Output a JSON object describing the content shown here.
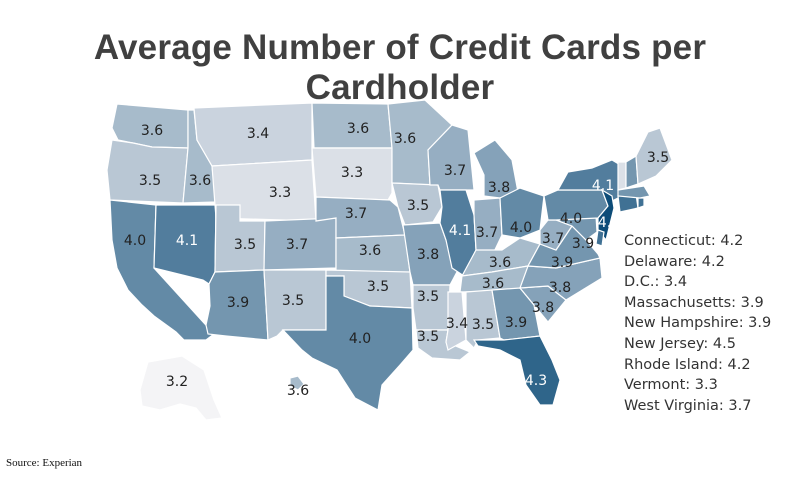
{
  "title": "Average Number of Credit Cards per Cardholder",
  "source": "Source: Experian",
  "chart_data": {
    "type": "choropleth",
    "color_scale": {
      "low": "#ececf0",
      "high": "#0d4c78",
      "min": 3.2,
      "max": 4.5
    },
    "states": [
      {
        "id": "WA",
        "value": "3.6"
      },
      {
        "id": "OR",
        "value": "3.5"
      },
      {
        "id": "CA",
        "value": "4.0"
      },
      {
        "id": "ID",
        "value": "3.6"
      },
      {
        "id": "NV",
        "value": "4.1"
      },
      {
        "id": "MT",
        "value": "3.4"
      },
      {
        "id": "WY",
        "value": "3.3"
      },
      {
        "id": "UT",
        "value": "3.5"
      },
      {
        "id": "AZ",
        "value": "3.9"
      },
      {
        "id": "CO",
        "value": "3.7"
      },
      {
        "id": "NM",
        "value": "3.5"
      },
      {
        "id": "ND",
        "value": "3.6"
      },
      {
        "id": "SD",
        "value": "3.3"
      },
      {
        "id": "NE",
        "value": "3.7"
      },
      {
        "id": "KS",
        "value": "3.6"
      },
      {
        "id": "OK",
        "value": "3.5"
      },
      {
        "id": "TX",
        "value": "4.0"
      },
      {
        "id": "MN",
        "value": "3.6"
      },
      {
        "id": "IA",
        "value": "3.5"
      },
      {
        "id": "MO",
        "value": "3.8"
      },
      {
        "id": "AR",
        "value": "3.5"
      },
      {
        "id": "LA",
        "value": "3.5"
      },
      {
        "id": "WI",
        "value": "3.7"
      },
      {
        "id": "IL",
        "value": "4.1"
      },
      {
        "id": "MI",
        "value": "3.8"
      },
      {
        "id": "IN",
        "value": "3.7"
      },
      {
        "id": "OH",
        "value": "4.0"
      },
      {
        "id": "KY",
        "value": "3.6"
      },
      {
        "id": "TN",
        "value": "3.6"
      },
      {
        "id": "MS",
        "value": "3.4"
      },
      {
        "id": "AL",
        "value": "3.5"
      },
      {
        "id": "GA",
        "value": "3.9"
      },
      {
        "id": "FL",
        "value": "4.3"
      },
      {
        "id": "SC",
        "value": "3.8"
      },
      {
        "id": "NC",
        "value": "3.8"
      },
      {
        "id": "VA",
        "value": "3.9"
      },
      {
        "id": "WV",
        "value": "3.7"
      },
      {
        "id": "MD",
        "value": "3.9"
      },
      {
        "id": "PA",
        "value": "4.0"
      },
      {
        "id": "NY",
        "value": "4.1"
      },
      {
        "id": "NJ",
        "value": "4.5"
      },
      {
        "id": "DE",
        "value": "4.2"
      },
      {
        "id": "CT",
        "value": "4.2"
      },
      {
        "id": "RI",
        "value": "4.2"
      },
      {
        "id": "MA",
        "value": "3.9"
      },
      {
        "id": "VT",
        "value": "3.3"
      },
      {
        "id": "NH",
        "value": "3.9"
      },
      {
        "id": "ME",
        "value": "3.5"
      },
      {
        "id": "AK",
        "value": "3.2"
      },
      {
        "id": "HI",
        "value": "3.6"
      }
    ],
    "annotations": [
      "Connecticut: 4.2",
      "Delaware: 4.2",
      "D.C.: 3.4",
      "Massachusetts: 3.9",
      "New Hampshire: 3.9",
      "New Jersey: 4.5",
      "Rhode Island: 4.2",
      "Vermont: 3.3",
      "West Virginia: 3.7"
    ]
  }
}
